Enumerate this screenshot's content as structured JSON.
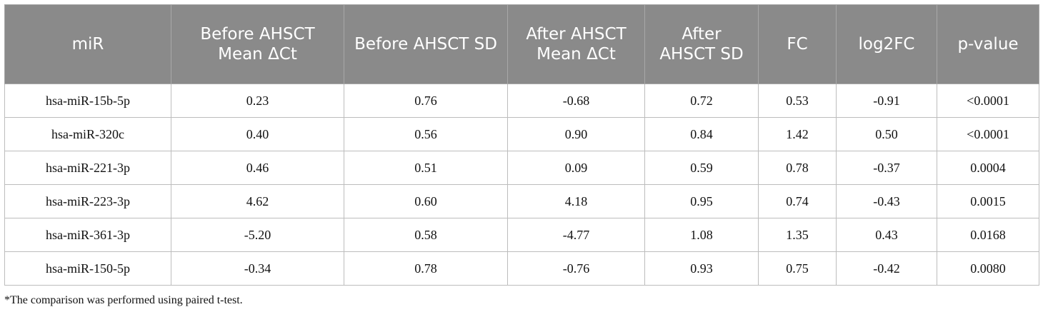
{
  "table": {
    "columns": [
      "miR",
      "Before AHSCT Mean ΔCt",
      "Before AHSCT SD",
      "After AHSCT Mean ΔCt",
      "After AHSCT SD",
      "FC",
      "log2FC",
      "p-value"
    ],
    "rows": [
      [
        "hsa-miR-15b-5p",
        "0.23",
        "0.76",
        "-0.68",
        "0.72",
        "0.53",
        "-0.91",
        "<0.0001"
      ],
      [
        "hsa-miR-320c",
        "0.40",
        "0.56",
        "0.90",
        "0.84",
        "1.42",
        "0.50",
        "<0.0001"
      ],
      [
        "hsa-miR-221-3p",
        "0.46",
        "0.51",
        "0.09",
        "0.59",
        "0.78",
        "-0.37",
        "0.0004"
      ],
      [
        "hsa-miR-223-3p",
        "4.62",
        "0.60",
        "4.18",
        "0.95",
        "0.74",
        "-0.43",
        "0.0015"
      ],
      [
        "hsa-miR-361-3p",
        "-5.20",
        "0.58",
        "-4.77",
        "1.08",
        "1.35",
        "0.43",
        "0.0168"
      ],
      [
        "hsa-miR-150-5p",
        "-0.34",
        "0.78",
        "-0.76",
        "0.93",
        "0.75",
        "-0.42",
        "0.0080"
      ]
    ]
  },
  "footnote": "*The comparison was performed using paired t-test."
}
